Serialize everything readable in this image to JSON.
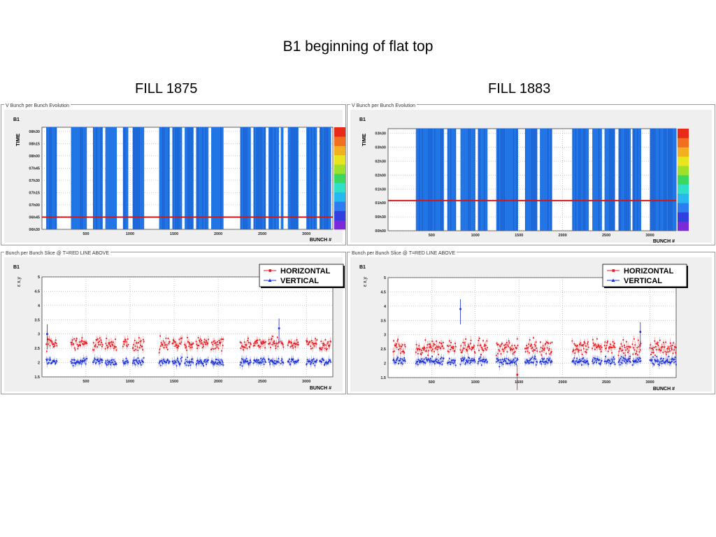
{
  "slide": {
    "title": "B1 beginning of flat top"
  },
  "fills": [
    {
      "label": "FILL 1875",
      "heatmap": {
        "panel_title": "V Bunch per Bunch  Evolution",
        "beam": "B1",
        "ylabel": "TIME",
        "xlabel": "BUNCH #",
        "x_ticks": [
          "500",
          "1000",
          "1500",
          "2000",
          "2500",
          "3000"
        ],
        "y_ticks": [
          "06h30",
          "06h45",
          "07h00",
          "07h15",
          "07h30",
          "07h45",
          "08h00",
          "08h15",
          "08h30"
        ],
        "red_line_time": "06h45"
      },
      "slice": {
        "panel_title": "Bunch per Bunch Slice @ T=RED LINE ABOVE",
        "beam": "B1",
        "ylabel": "ε x,y",
        "xlabel": "BUNCH #",
        "x_ticks": [
          "500",
          "1000",
          "1500",
          "2000",
          "2500",
          "3000"
        ],
        "y_ticks": [
          "1.5",
          "2",
          "2.5",
          "3",
          "3.5",
          "4",
          "4.5",
          "5"
        ],
        "legend": [
          "HORIZONTAL",
          "VERTICAL"
        ]
      }
    },
    {
      "label": "FILL 1883",
      "heatmap": {
        "panel_title": "V Bunch per Bunch  Evolution",
        "beam": "B1",
        "ylabel": "TIME",
        "xlabel": "BUNCH #",
        "x_ticks": [
          "500",
          "1000",
          "1500",
          "2000",
          "2500",
          "3000"
        ],
        "y_ticks": [
          "00h00",
          "00h30",
          "01h00",
          "01h30",
          "02h00",
          "02h30",
          "03h00",
          "03h30"
        ],
        "red_line_time": "01h05"
      },
      "slice": {
        "panel_title": "Bunch per Bunch Slice @ T=RED LINE ABOVE",
        "beam": "B1",
        "ylabel": "ε x,y",
        "xlabel": "BUNCH #",
        "x_ticks": [
          "500",
          "1000",
          "1500",
          "2000",
          "2500",
          "3000"
        ],
        "y_ticks": [
          "1.5",
          "2",
          "2.5",
          "3",
          "3.5",
          "4",
          "4.5",
          "5"
        ],
        "legend": [
          "HORIZONTAL",
          "VERTICAL"
        ]
      }
    }
  ],
  "colors": {
    "horizontal": "#e8141b",
    "vertical": "#1a2fd6",
    "heat_bunch": "#1f6fe0",
    "red_line": "#cc1a1a"
  },
  "chart_data": [
    {
      "type": "heatmap",
      "title": "V Bunch per Bunch  Evolution",
      "xlabel": "BUNCH #",
      "ylabel": "TIME",
      "xlim": [
        1,
        3300
      ],
      "ylim": [
        "06h30",
        "08h35"
      ],
      "grid": true,
      "filled_bunch_ranges": [
        [
          50,
          170
        ],
        [
          330,
          510
        ],
        [
          580,
          690
        ],
        [
          720,
          850
        ],
        [
          920,
          980
        ],
        [
          1030,
          1160
        ],
        [
          1330,
          1450
        ],
        [
          1480,
          1590
        ],
        [
          1620,
          1720
        ],
        [
          1750,
          1890
        ],
        [
          1920,
          2060
        ],
        [
          2250,
          2370
        ],
        [
          2400,
          2540
        ],
        [
          2570,
          2690
        ],
        [
          2710,
          2740
        ],
        [
          2790,
          2910
        ],
        [
          3000,
          3120
        ],
        [
          3150,
          3280
        ]
      ],
      "red_line_time": "06h45",
      "colorbar": "rainbow"
    },
    {
      "type": "scatter",
      "title": "Bunch per Bunch Slice @ T=RED LINE ABOVE",
      "xlabel": "BUNCH #",
      "ylabel": "ε x,y",
      "xlim": [
        1,
        3300
      ],
      "ylim": [
        1.5,
        5
      ],
      "grid": true,
      "legend": "top-right",
      "series": [
        {
          "name": "HORIZONTAL",
          "mean": 2.65,
          "spread": 0.17
        },
        {
          "name": "VERTICAL",
          "mean": 2.03,
          "spread": 0.1
        }
      ],
      "bunch_ranges": [
        [
          50,
          170
        ],
        [
          330,
          510
        ],
        [
          580,
          690
        ],
        [
          720,
          850
        ],
        [
          920,
          980
        ],
        [
          1030,
          1160
        ],
        [
          1330,
          1450
        ],
        [
          1480,
          1590
        ],
        [
          1620,
          1720
        ],
        [
          1750,
          1890
        ],
        [
          1920,
          2060
        ],
        [
          2250,
          2370
        ],
        [
          2400,
          2540
        ],
        [
          2570,
          2690
        ],
        [
          2710,
          2740
        ],
        [
          2790,
          2910
        ],
        [
          3000,
          3120
        ],
        [
          3150,
          3280
        ]
      ],
      "outliers": [
        {
          "series": "VERTICAL",
          "x": 2690,
          "y": 3.2
        },
        {
          "series": "VERTICAL",
          "x": 60,
          "y": 3.0
        }
      ]
    },
    {
      "type": "heatmap",
      "title": "V Bunch per Bunch  Evolution",
      "xlabel": "BUNCH #",
      "ylabel": "TIME",
      "xlim": [
        1,
        3300
      ],
      "ylim": [
        "00h00",
        "03h40"
      ],
      "grid": true,
      "filled_bunch_ranges": [
        [
          320,
          640
        ],
        [
          680,
          780
        ],
        [
          830,
          1000
        ],
        [
          1030,
          1140
        ],
        [
          1240,
          1490
        ],
        [
          1570,
          1710
        ],
        [
          1740,
          1880
        ],
        [
          2110,
          2300
        ],
        [
          2340,
          2450
        ],
        [
          2480,
          2600
        ],
        [
          2640,
          2780
        ],
        [
          2800,
          2900
        ],
        [
          3000,
          3300
        ]
      ],
      "red_line_time": "01h05",
      "colorbar": "rainbow"
    },
    {
      "type": "scatter",
      "title": "Bunch per Bunch Slice @ T=RED LINE ABOVE",
      "xlabel": "BUNCH #",
      "ylabel": "ε x,y",
      "xlim": [
        1,
        3300
      ],
      "ylim": [
        1.5,
        5
      ],
      "grid": true,
      "legend": "top-right",
      "series": [
        {
          "name": "HORIZONTAL",
          "mean": 2.55,
          "spread": 0.22
        },
        {
          "name": "VERTICAL",
          "mean": 2.08,
          "spread": 0.12
        }
      ],
      "bunch_ranges": [
        [
          60,
          200
        ],
        [
          320,
          640
        ],
        [
          680,
          780
        ],
        [
          830,
          1000
        ],
        [
          1030,
          1140
        ],
        [
          1240,
          1490
        ],
        [
          1570,
          1710
        ],
        [
          1740,
          1880
        ],
        [
          2110,
          2300
        ],
        [
          2340,
          2450
        ],
        [
          2480,
          2600
        ],
        [
          2640,
          2780
        ],
        [
          2800,
          2900
        ],
        [
          3000,
          3300
        ]
      ],
      "outliers": [
        {
          "series": "VERTICAL",
          "x": 830,
          "y": 3.9
        },
        {
          "series": "VERTICAL",
          "x": 2890,
          "y": 3.1
        },
        {
          "series": "HORIZONTAL",
          "x": 1480,
          "y": 1.6
        }
      ]
    }
  ]
}
